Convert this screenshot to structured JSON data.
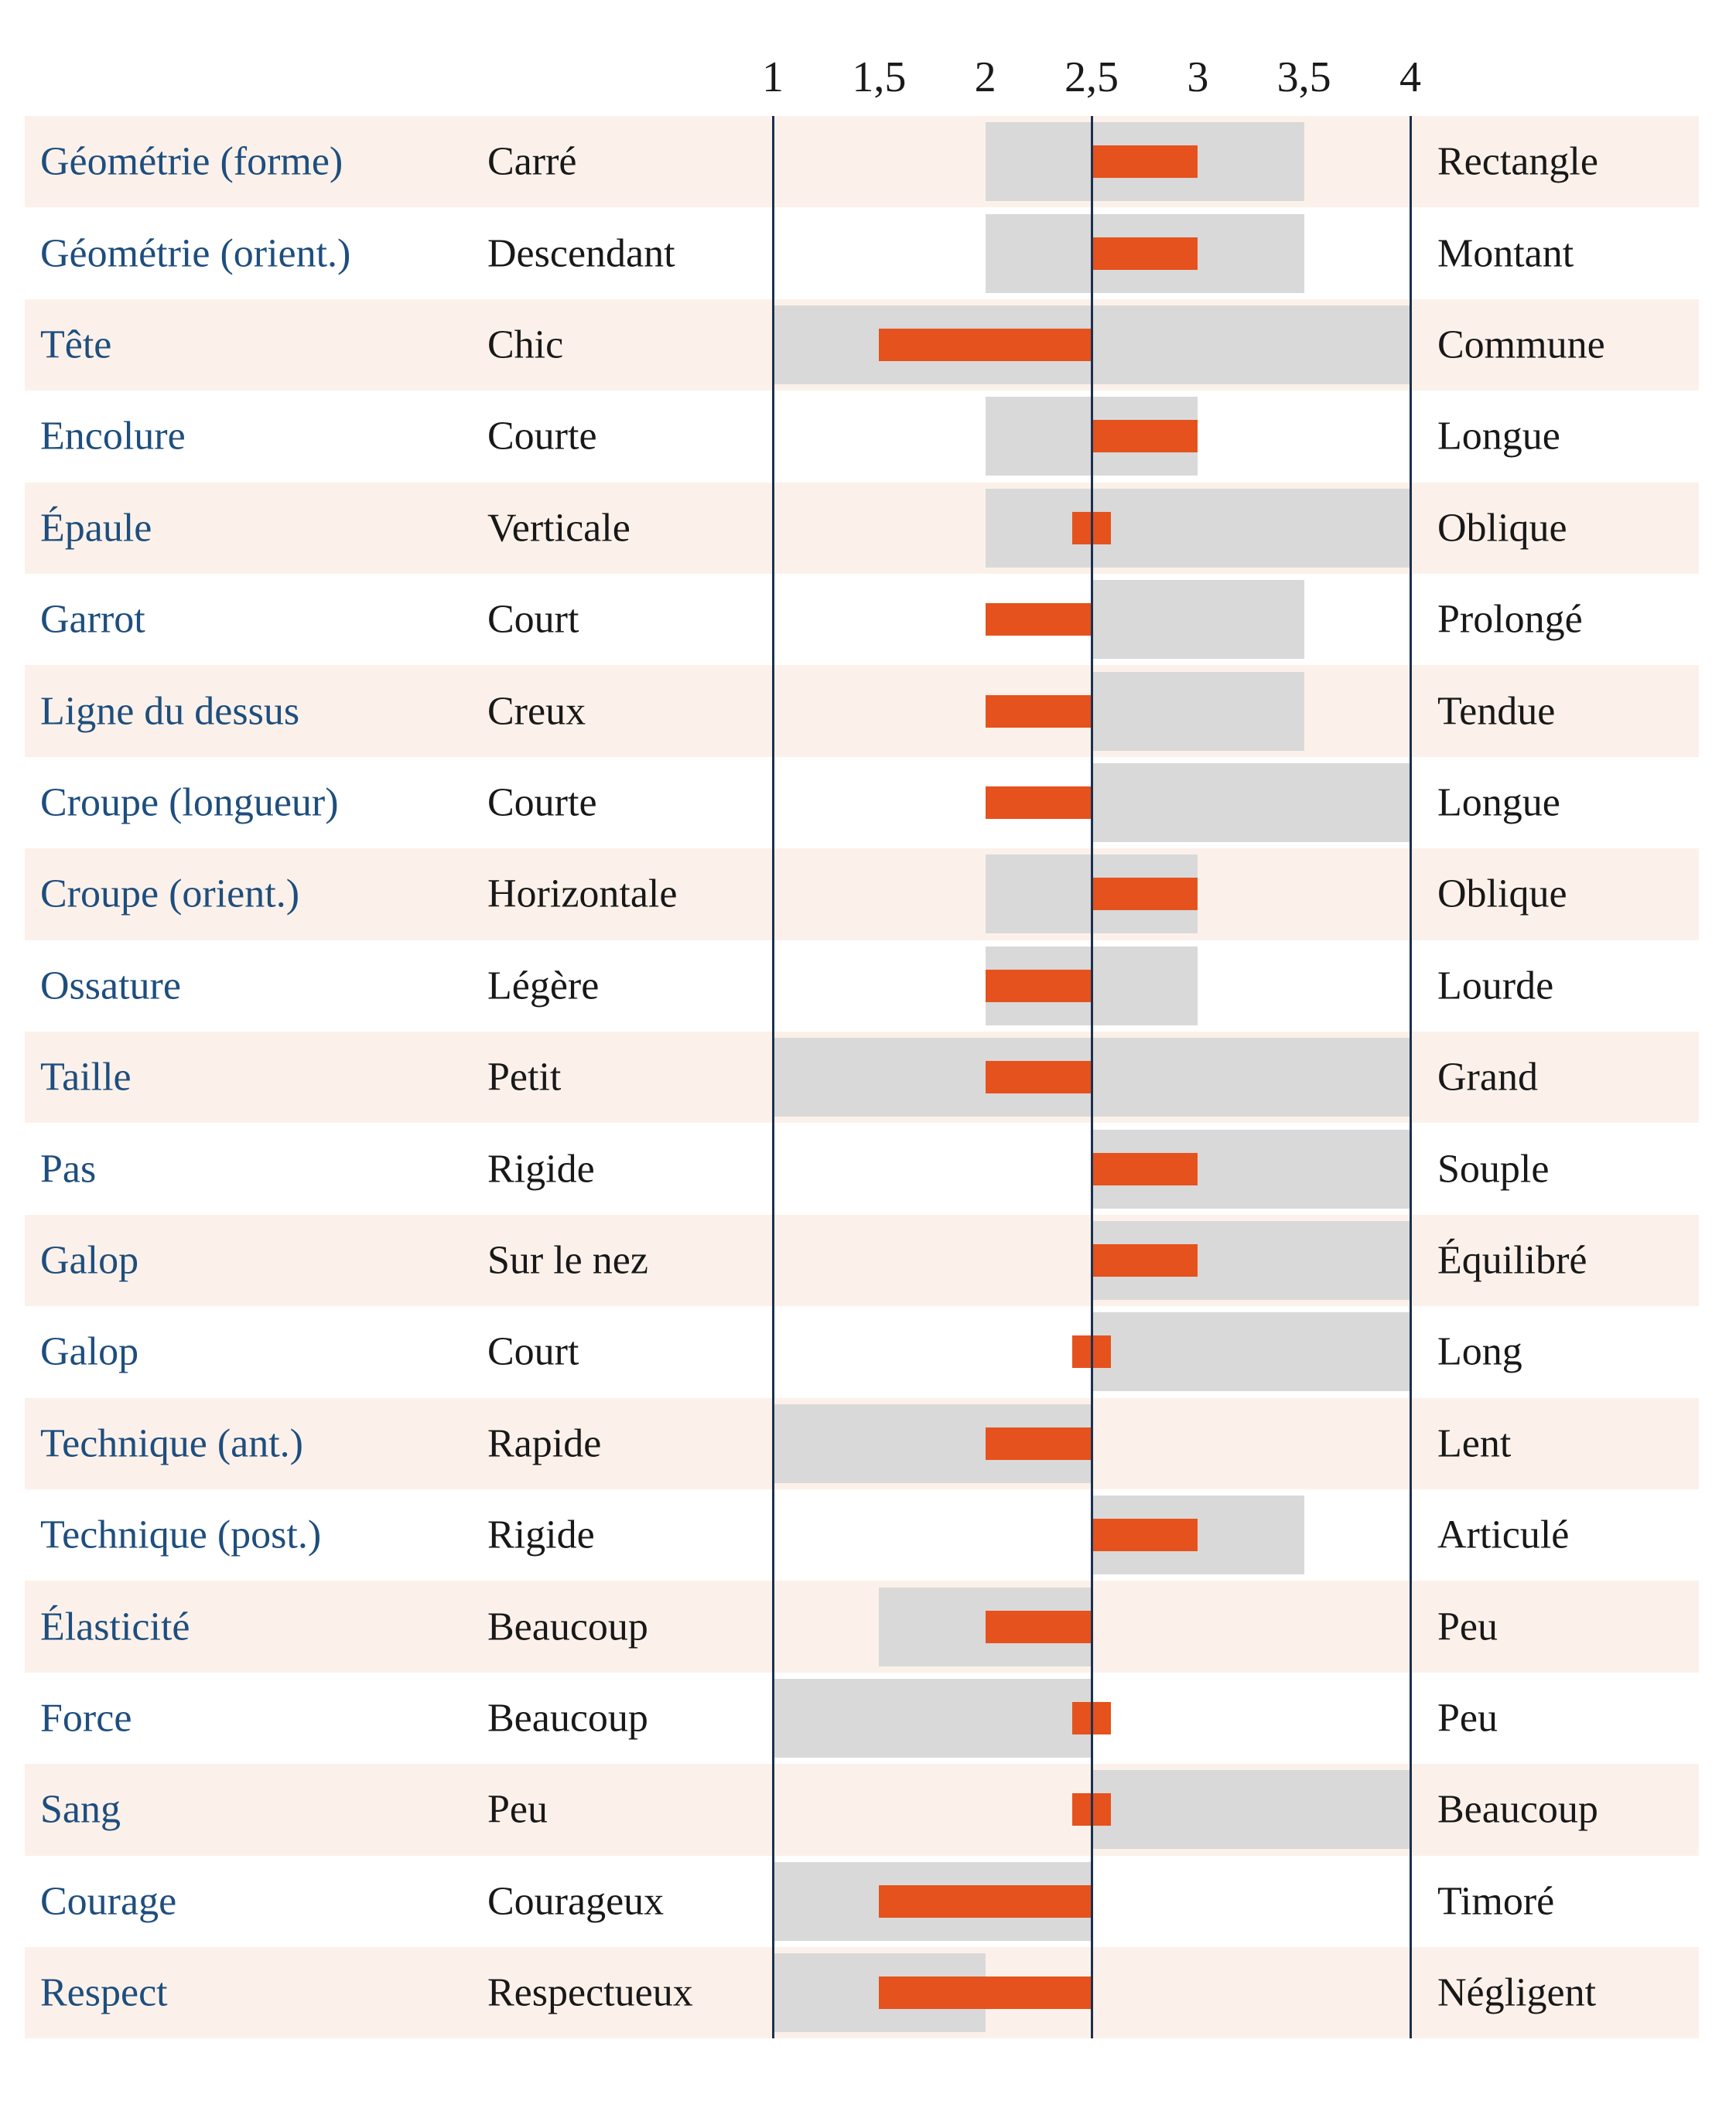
{
  "chart_data": {
    "type": "bar",
    "variant": "horizontal-range-with-value-bars",
    "title": "",
    "xlabel": "",
    "ylabel": "",
    "axis": {
      "min": 1,
      "max": 4,
      "tick_values": [
        1,
        1.5,
        2,
        2.5,
        3,
        3.5,
        4
      ],
      "tick_labels": [
        "1",
        "1,5",
        "2",
        "2,5",
        "3",
        "3,5",
        "4"
      ],
      "reference_lines": [
        1,
        2.5,
        4
      ],
      "grid": false
    },
    "colors": {
      "range_bar": "#d9d9d9",
      "value_bar": "#e5521d",
      "row_band": "#fcf1ea",
      "reference_line": "#1c3150",
      "category_text": "#1e4e7e",
      "descriptor_text": "#181818"
    },
    "rows": [
      {
        "category": "Géométrie (forme)",
        "left": "Carré",
        "right": "Rectangle",
        "range": [
          2,
          3.5
        ],
        "value": [
          2.5,
          3
        ]
      },
      {
        "category": "Géométrie (orient.)",
        "left": "Descendant",
        "right": "Montant",
        "range": [
          2,
          3.5
        ],
        "value": [
          2.5,
          3
        ]
      },
      {
        "category": "Tête",
        "left": "Chic",
        "right": "Commune",
        "range": [
          1,
          4
        ],
        "value": [
          1.5,
          2.5
        ]
      },
      {
        "category": "Encolure",
        "left": "Courte",
        "right": "Longue",
        "range": [
          2,
          3
        ],
        "value": [
          2.5,
          3
        ]
      },
      {
        "category": "Épaule",
        "left": "Verticale",
        "right": "Oblique",
        "range": [
          2,
          4
        ],
        "value": [
          2.41,
          2.59
        ]
      },
      {
        "category": "Garrot",
        "left": "Court",
        "right": "Prolongé",
        "range": [
          2.5,
          3.5
        ],
        "value": [
          2,
          2.5
        ]
      },
      {
        "category": "Ligne du dessus",
        "left": "Creux",
        "right": "Tendue",
        "range": [
          2.5,
          3.5
        ],
        "value": [
          2,
          2.5
        ]
      },
      {
        "category": "Croupe (longueur)",
        "left": "Courte",
        "right": "Longue",
        "range": [
          2.5,
          4
        ],
        "value": [
          2,
          2.5
        ]
      },
      {
        "category": "Croupe (orient.)",
        "left": "Horizontale",
        "right": "Oblique",
        "range": [
          2,
          3
        ],
        "value": [
          2.5,
          3
        ]
      },
      {
        "category": "Ossature",
        "left": "Légère",
        "right": "Lourde",
        "range": [
          2,
          3
        ],
        "value": [
          2,
          2.5
        ]
      },
      {
        "category": "Taille",
        "left": "Petit",
        "right": "Grand",
        "range": [
          1,
          4
        ],
        "value": [
          2,
          2.5
        ]
      },
      {
        "category": "Pas",
        "left": "Rigide",
        "right": "Souple",
        "range": [
          2.5,
          4
        ],
        "value": [
          2.5,
          3
        ]
      },
      {
        "category": "Galop",
        "left": "Sur le nez",
        "right": "Équilibré",
        "range": [
          2.5,
          4
        ],
        "value": [
          2.5,
          3
        ]
      },
      {
        "category": "Galop",
        "left": "Court",
        "right": "Long",
        "range": [
          2.5,
          4
        ],
        "value": [
          2.41,
          2.59
        ]
      },
      {
        "category": "Technique (ant.)",
        "left": "Rapide",
        "right": "Lent",
        "range": [
          1,
          2.5
        ],
        "value": [
          2,
          2.5
        ]
      },
      {
        "category": "Technique (post.)",
        "left": "Rigide",
        "right": "Articulé",
        "range": [
          2.5,
          3.5
        ],
        "value": [
          2.5,
          3
        ]
      },
      {
        "category": "Élasticité",
        "left": "Beaucoup",
        "right": "Peu",
        "range": [
          1.5,
          2.5
        ],
        "value": [
          2,
          2.5
        ]
      },
      {
        "category": "Force",
        "left": "Beaucoup",
        "right": "Peu",
        "range": [
          1,
          2.5
        ],
        "value": [
          2.41,
          2.59
        ]
      },
      {
        "category": "Sang",
        "left": "Peu",
        "right": "Beaucoup",
        "range": [
          2.5,
          4
        ],
        "value": [
          2.41,
          2.59
        ]
      },
      {
        "category": "Courage",
        "left": "Courageux",
        "right": "Timoré",
        "range": [
          1,
          2.5
        ],
        "value": [
          1.5,
          2.5
        ]
      },
      {
        "category": "Respect",
        "left": "Respectueux",
        "right": "Négligent",
        "range": [
          1,
          2
        ],
        "value": [
          1.5,
          2.5
        ]
      }
    ]
  }
}
